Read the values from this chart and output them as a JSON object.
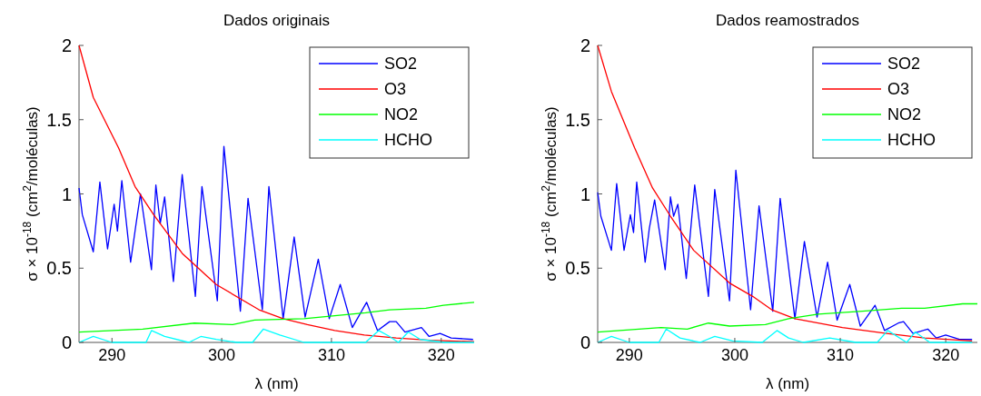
{
  "chart_data": [
    {
      "type": "line",
      "title": "Dados originais",
      "xlabel": "λ (nm)",
      "ylabel": "σ × 10$^{-18}$ (cm$^{2}$/moléculas)",
      "xlim": [
        287,
        323
      ],
      "ylim": [
        0,
        2
      ],
      "xticks": [
        290,
        300,
        310,
        320
      ],
      "yticks": [
        0,
        0.5,
        1,
        1.5,
        2
      ],
      "legend": "top right",
      "grid": false,
      "series": [
        {
          "name": "SO2",
          "color": "#0000ff",
          "x": [
            287,
            287.3,
            288.3,
            288.9,
            289.6,
            290.2,
            290.5,
            290.9,
            291.7,
            292.2,
            292.6,
            293.6,
            294.0,
            294.4,
            294.8,
            295.6,
            296.4,
            297.6,
            298.2,
            299.6,
            300.2,
            301.7,
            302.4,
            303.7,
            304.3,
            305.6,
            306.6,
            307.6,
            308.8,
            309.8,
            310.8,
            311.9,
            313.2,
            314.2,
            315.3,
            315.9,
            316.7,
            318.2,
            318.9,
            319.9,
            320.9,
            322.9
          ],
          "values": [
            1.04,
            0.86,
            0.61,
            1.08,
            0.63,
            0.93,
            0.75,
            1.09,
            0.54,
            0.8,
            1.0,
            0.49,
            1.06,
            0.8,
            0.98,
            0.41,
            1.13,
            0.31,
            1.05,
            0.28,
            1.32,
            0.21,
            0.97,
            0.22,
            1.05,
            0.16,
            0.71,
            0.17,
            0.56,
            0.16,
            0.39,
            0.1,
            0.27,
            0.08,
            0.14,
            0.14,
            0.07,
            0.1,
            0.04,
            0.06,
            0.03,
            0.02
          ]
        },
        {
          "name": "O3",
          "color": "#ff0000",
          "x": [
            287,
            288.3,
            290.6,
            292.1,
            293.8,
            296.4,
            299.5,
            303.4,
            305.6,
            307.8,
            310.3,
            313,
            315.9,
            319,
            323
          ],
          "values": [
            2.0,
            1.65,
            1.31,
            1.05,
            0.86,
            0.6,
            0.39,
            0.22,
            0.16,
            0.12,
            0.08,
            0.05,
            0.03,
            0.015,
            0.005
          ]
        },
        {
          "name": "NO2",
          "color": "#00ff00",
          "x": [
            287,
            292.8,
            297.5,
            301,
            303,
            307.5,
            310.3,
            313.1,
            315.3,
            318.6,
            320.2,
            323
          ],
          "values": [
            0.07,
            0.09,
            0.13,
            0.12,
            0.15,
            0.16,
            0.18,
            0.2,
            0.22,
            0.23,
            0.25,
            0.27
          ]
        },
        {
          "name": "HCHO",
          "color": "#00ffff",
          "x": [
            287,
            288.3,
            290,
            293.1,
            293.6,
            294.8,
            297,
            298.1,
            299.5,
            301.4,
            302.8,
            303.8,
            305.3,
            307.5,
            310.3,
            313.1,
            314.3,
            315.3,
            316.1,
            317,
            318.1,
            320.3,
            323
          ],
          "values": [
            0,
            0.04,
            0,
            0,
            0.08,
            0.04,
            0,
            0.04,
            0.02,
            0,
            0,
            0.09,
            0.05,
            0,
            0,
            0,
            0.08,
            0.04,
            0,
            0.07,
            0.02,
            0,
            0
          ]
        }
      ]
    },
    {
      "type": "line",
      "title": "Dados reamostrados",
      "xlabel": "λ (nm)",
      "ylabel": "σ × 10$^{-18}$ (cm$^{2}$/moléculas)",
      "xlim": [
        287,
        323
      ],
      "ylim": [
        0,
        2
      ],
      "xticks": [
        290,
        300,
        310,
        320
      ],
      "yticks": [
        0,
        0.5,
        1,
        1.5,
        2
      ],
      "legend": "top right",
      "grid": false,
      "series": [
        {
          "name": "SO2",
          "color": "#0000ff",
          "x": [
            287,
            287.3,
            288.3,
            288.8,
            289.5,
            290.1,
            290.4,
            290.7,
            291.5,
            291.9,
            292.4,
            293.4,
            293.9,
            294.2,
            294.6,
            295.4,
            296.2,
            297.5,
            298.1,
            299.5,
            300.1,
            301.5,
            302.3,
            303.6,
            304.3,
            305.7,
            306.6,
            307.8,
            308.8,
            309.7,
            310.9,
            311.9,
            313.3,
            314.2,
            315.5,
            316.0,
            316.9,
            318.3,
            319.1,
            320.0,
            321.3,
            322.5
          ],
          "values": [
            1.01,
            0.85,
            0.62,
            1.07,
            0.62,
            0.86,
            0.74,
            1.08,
            0.54,
            0.77,
            0.96,
            0.49,
            0.98,
            0.85,
            0.93,
            0.43,
            1.06,
            0.31,
            1.03,
            0.28,
            1.16,
            0.22,
            0.92,
            0.21,
            0.97,
            0.16,
            0.68,
            0.17,
            0.54,
            0.15,
            0.39,
            0.11,
            0.25,
            0.08,
            0.13,
            0.14,
            0.06,
            0.09,
            0.03,
            0.05,
            0.02,
            0.02
          ]
        },
        {
          "name": "O3",
          "color": "#ff0000",
          "x": [
            287,
            288.3,
            290.5,
            292.2,
            293.9,
            296.1,
            299.5,
            301.7,
            303.5,
            305.7,
            310.2,
            314.4,
            318,
            322.5
          ],
          "values": [
            2.0,
            1.69,
            1.31,
            1.04,
            0.85,
            0.62,
            0.4,
            0.31,
            0.22,
            0.16,
            0.1,
            0.06,
            0.03,
            0.01
          ]
        },
        {
          "name": "NO2",
          "color": "#00ff00",
          "x": [
            287,
            293,
            295.5,
            297.5,
            299.5,
            302.9,
            305.1,
            307.9,
            312.1,
            315.8,
            318,
            321.6,
            323
          ],
          "values": [
            0.07,
            0.1,
            0.09,
            0.13,
            0.11,
            0.12,
            0.16,
            0.19,
            0.21,
            0.23,
            0.23,
            0.26,
            0.26
          ]
        },
        {
          "name": "HCHO",
          "color": "#00ffff",
          "x": [
            287,
            288.3,
            290,
            292.8,
            293.5,
            294.8,
            296.7,
            298.1,
            299.8,
            302.6,
            304,
            305.1,
            306.5,
            309,
            311.5,
            313.5,
            314.5,
            316.3,
            317.1,
            318.5,
            322.5
          ],
          "values": [
            0,
            0.04,
            0,
            0,
            0.09,
            0.03,
            0,
            0.04,
            0.01,
            0,
            0.08,
            0.03,
            0,
            0.03,
            0,
            0,
            0.08,
            0,
            0.07,
            0,
            0
          ]
        }
      ]
    }
  ]
}
